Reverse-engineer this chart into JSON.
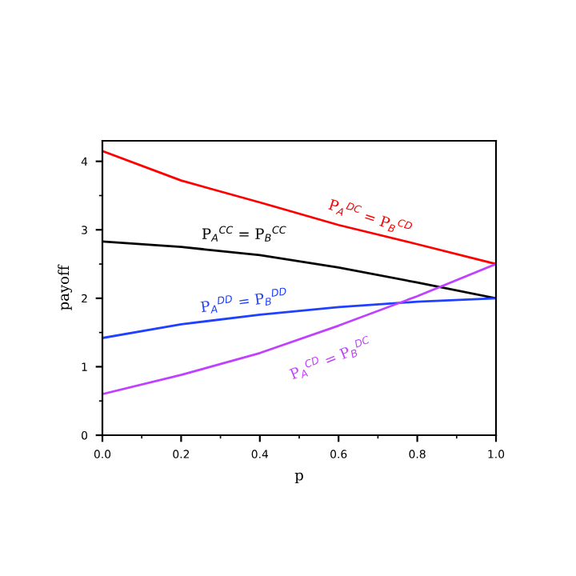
{
  "chart_data": {
    "type": "line",
    "xlabel": "p",
    "ylabel": "payoff",
    "x": [
      0,
      0.2,
      0.4,
      0.6,
      0.8,
      1.0
    ],
    "series": [
      {
        "name": "P$_{A}$$^{DC}$ = P$_{B}$$^{CD}$",
        "color": "#ff0000",
        "values": [
          4.15,
          3.72,
          3.4,
          3.07,
          2.79,
          2.5
        ]
      },
      {
        "name": "P$_{A}$$^{CC}$ = P$_{B}$$^{CC}$",
        "color": "#000000",
        "values": [
          2.83,
          2.75,
          2.63,
          2.45,
          2.23,
          2.0
        ]
      },
      {
        "name": "P$_{A}$$^{DD}$ = P$_{B}$$^{DD}$",
        "color": "#2040ff",
        "values": [
          1.42,
          1.62,
          1.76,
          1.87,
          1.95,
          2.0
        ]
      },
      {
        "name": "P$_{A}$$^{CD}$ = P$_{B}$$^{DC}$",
        "color": "#c040ff",
        "values": [
          0.6,
          0.88,
          1.2,
          1.6,
          2.03,
          2.5
        ]
      }
    ],
    "xlim": [
      0,
      1
    ],
    "xticks": [
      {
        "value": 0,
        "label": "0.0"
      },
      0.2,
      0.4,
      0.6,
      0.8,
      {
        "value": 1,
        "label": "1.0"
      }
    ],
    "ylim": [
      0,
      4.3
    ],
    "yticks": [
      0,
      1,
      2,
      3,
      4
    ],
    "grid": false,
    "marker": "none",
    "line_style": "solid"
  }
}
